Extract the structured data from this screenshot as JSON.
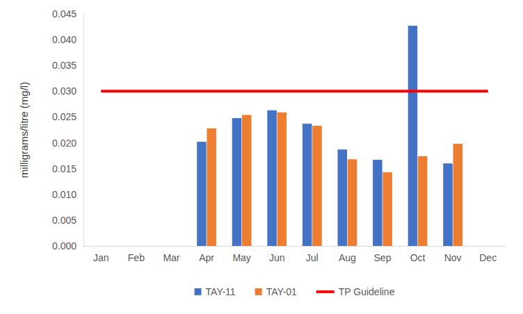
{
  "chart_data": {
    "type": "bar",
    "categories": [
      "Jan",
      "Feb",
      "Mar",
      "Apr",
      "May",
      "Jun",
      "Jul",
      "Aug",
      "Sep",
      "Oct",
      "Nov",
      "Dec"
    ],
    "series": [
      {
        "name": "TAY-11",
        "color": "#4472c4",
        "values": [
          null,
          null,
          null,
          0.0202,
          0.0248,
          0.0263,
          0.0237,
          0.0187,
          0.0167,
          0.0427,
          0.016,
          null
        ]
      },
      {
        "name": "TAY-01",
        "color": "#ed7d31",
        "values": [
          null,
          null,
          null,
          0.0228,
          0.0254,
          0.0259,
          0.0233,
          0.0168,
          0.0143,
          0.0174,
          0.0198,
          null
        ]
      },
      {
        "name": "TP Guideline",
        "type": "line",
        "color": "#ff0000",
        "values": [
          0.03,
          0.03,
          0.03,
          0.03,
          0.03,
          0.03,
          0.03,
          0.03,
          0.03,
          0.03,
          0.03,
          0.03
        ]
      }
    ],
    "y_label": "milligrams/litre (mg/l)",
    "ylim": [
      0,
      0.045
    ],
    "yticks": [
      {
        "value": 0,
        "label": "0.000"
      },
      {
        "value": 0.005,
        "label": "0.005"
      },
      {
        "value": 0.01,
        "label": "0.010"
      },
      {
        "value": 0.015,
        "label": "0.015"
      },
      {
        "value": 0.02,
        "label": "0.020"
      },
      {
        "value": 0.025,
        "label": "0.025"
      },
      {
        "value": 0.03,
        "label": "0.030"
      },
      {
        "value": 0.035,
        "label": "0.035"
      },
      {
        "value": 0.04,
        "label": "0.040"
      },
      {
        "value": 0.045,
        "label": "0.045"
      }
    ],
    "grid": false,
    "legend": "bottom"
  }
}
